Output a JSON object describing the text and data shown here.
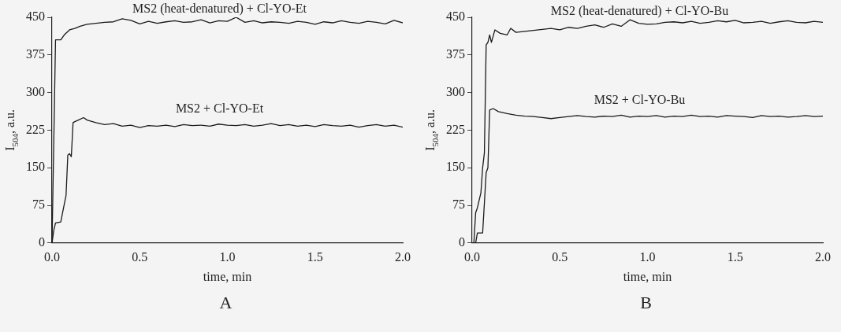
{
  "chart_data": [
    {
      "type": "line",
      "title": "A",
      "xlabel": "time, min",
      "ylabel": "I$_{504}$, a.u.",
      "xlim": [
        0,
        2
      ],
      "xticks": [
        {
          "value": 0,
          "label": "0.0"
        },
        {
          "value": 0.5,
          "label": "0.5"
        },
        {
          "value": 1,
          "label": "1.0"
        },
        {
          "value": 1.5,
          "label": "1.5"
        },
        {
          "value": 2,
          "label": "2.0"
        }
      ],
      "ylim": [
        0,
        450
      ],
      "yticks": [
        0,
        75,
        150,
        225,
        300,
        375,
        450
      ],
      "grid": false,
      "legend": false,
      "marker": "none",
      "line_style": "solid",
      "series": [
        {
          "name": "MS2 (heat-denatured) + Cl-YO-Et",
          "color": "#1a1a1a",
          "x": [
            0,
            0.01,
            0.02,
            0.05,
            0.07,
            0.1,
            0.13,
            0.16,
            0.2,
            0.25,
            0.3,
            0.35,
            0.4,
            0.45,
            0.5,
            0.55,
            0.6,
            0.65,
            0.7,
            0.75,
            0.8,
            0.85,
            0.9,
            0.95,
            1.0,
            1.05,
            1.1,
            1.15,
            1.2,
            1.25,
            1.3,
            1.35,
            1.4,
            1.45,
            1.5,
            1.55,
            1.6,
            1.65,
            1.7,
            1.75,
            1.8,
            1.85,
            1.9,
            1.95,
            2.0
          ],
          "values": [
            0,
            200,
            405,
            405,
            415,
            425,
            428,
            432,
            436,
            438,
            440,
            441,
            447,
            444,
            437,
            442,
            438,
            441,
            443,
            440,
            441,
            445,
            439,
            443,
            442,
            450,
            440,
            443,
            439,
            441,
            440,
            438,
            442,
            440,
            436,
            441,
            439,
            443,
            440,
            438,
            442,
            440,
            437,
            444,
            439
          ]
        },
        {
          "name": "MS2 + Cl-YO-Et",
          "color": "#1a1a1a",
          "x": [
            0,
            0.01,
            0.02,
            0.05,
            0.06,
            0.08,
            0.09,
            0.1,
            0.11,
            0.12,
            0.13,
            0.15,
            0.18,
            0.2,
            0.25,
            0.3,
            0.35,
            0.4,
            0.45,
            0.5,
            0.55,
            0.6,
            0.65,
            0.7,
            0.75,
            0.8,
            0.85,
            0.9,
            0.95,
            1.0,
            1.05,
            1.1,
            1.15,
            1.2,
            1.25,
            1.3,
            1.35,
            1.4,
            1.45,
            1.5,
            1.55,
            1.6,
            1.65,
            1.7,
            1.75,
            1.8,
            1.85,
            1.9,
            1.95,
            2.0
          ],
          "values": [
            0,
            25,
            40,
            42,
            60,
            95,
            175,
            178,
            172,
            240,
            242,
            245,
            250,
            245,
            240,
            236,
            238,
            233,
            235,
            230,
            234,
            233,
            235,
            232,
            236,
            234,
            235,
            233,
            237,
            235,
            234,
            236,
            233,
            235,
            238,
            234,
            236,
            233,
            235,
            232,
            236,
            234,
            233,
            235,
            231,
            234,
            236,
            233,
            235,
            231
          ]
        }
      ]
    },
    {
      "type": "line",
      "title": "B",
      "xlabel": "time, min",
      "ylabel": "I$_{504}$, a.u.",
      "xlim": [
        0,
        2
      ],
      "xticks": [
        {
          "value": 0,
          "label": "0.0"
        },
        {
          "value": 0.5,
          "label": "0.5"
        },
        {
          "value": 1,
          "label": "1.0"
        },
        {
          "value": 1.5,
          "label": "1.5"
        },
        {
          "value": 2,
          "label": "2.0"
        }
      ],
      "ylim": [
        0,
        450
      ],
      "yticks": [
        0,
        75,
        150,
        225,
        300,
        375,
        450
      ],
      "grid": false,
      "legend": false,
      "marker": "none",
      "line_style": "solid",
      "series": [
        {
          "name": "MS2 (heat-denatured) + Cl-YO-Bu",
          "color": "#1a1a1a",
          "x": [
            0,
            0.01,
            0.02,
            0.03,
            0.05,
            0.06,
            0.07,
            0.08,
            0.09,
            0.1,
            0.11,
            0.13,
            0.16,
            0.2,
            0.22,
            0.25,
            0.3,
            0.35,
            0.4,
            0.45,
            0.5,
            0.55,
            0.6,
            0.65,
            0.7,
            0.75,
            0.8,
            0.85,
            0.9,
            0.95,
            1.0,
            1.05,
            1.1,
            1.15,
            1.2,
            1.25,
            1.3,
            1.35,
            1.4,
            1.45,
            1.5,
            1.55,
            1.6,
            1.65,
            1.7,
            1.75,
            1.8,
            1.85,
            1.9,
            1.95,
            2.0
          ],
          "values": [
            0,
            0,
            60,
            70,
            100,
            150,
            180,
            395,
            400,
            415,
            400,
            425,
            418,
            415,
            428,
            420,
            422,
            424,
            426,
            428,
            425,
            430,
            428,
            432,
            435,
            430,
            437,
            432,
            445,
            438,
            436,
            437,
            440,
            441,
            439,
            442,
            438,
            440,
            443,
            441,
            444,
            439,
            440,
            442,
            438,
            441,
            443,
            440,
            439,
            442,
            440
          ]
        },
        {
          "name": "MS2 + Cl-YO-Bu",
          "color": "#1a1a1a",
          "x": [
            0,
            0.02,
            0.03,
            0.04,
            0.06,
            0.07,
            0.08,
            0.09,
            0.1,
            0.12,
            0.15,
            0.2,
            0.25,
            0.3,
            0.35,
            0.4,
            0.45,
            0.5,
            0.55,
            0.6,
            0.65,
            0.7,
            0.75,
            0.8,
            0.85,
            0.9,
            0.95,
            1.0,
            1.05,
            1.1,
            1.15,
            1.2,
            1.25,
            1.3,
            1.35,
            1.4,
            1.45,
            1.5,
            1.55,
            1.6,
            1.65,
            1.7,
            1.75,
            1.8,
            1.85,
            1.9,
            1.95,
            2.0
          ],
          "values": [
            0,
            0,
            20,
            20,
            20,
            80,
            140,
            150,
            265,
            268,
            262,
            258,
            255,
            253,
            252,
            250,
            248,
            250,
            252,
            254,
            252,
            251,
            253,
            252,
            255,
            251,
            253,
            252,
            254,
            251,
            253,
            252,
            255,
            252,
            253,
            251,
            254,
            253,
            252,
            250,
            254,
            252,
            253,
            251,
            252,
            254,
            252,
            253
          ]
        }
      ]
    }
  ]
}
